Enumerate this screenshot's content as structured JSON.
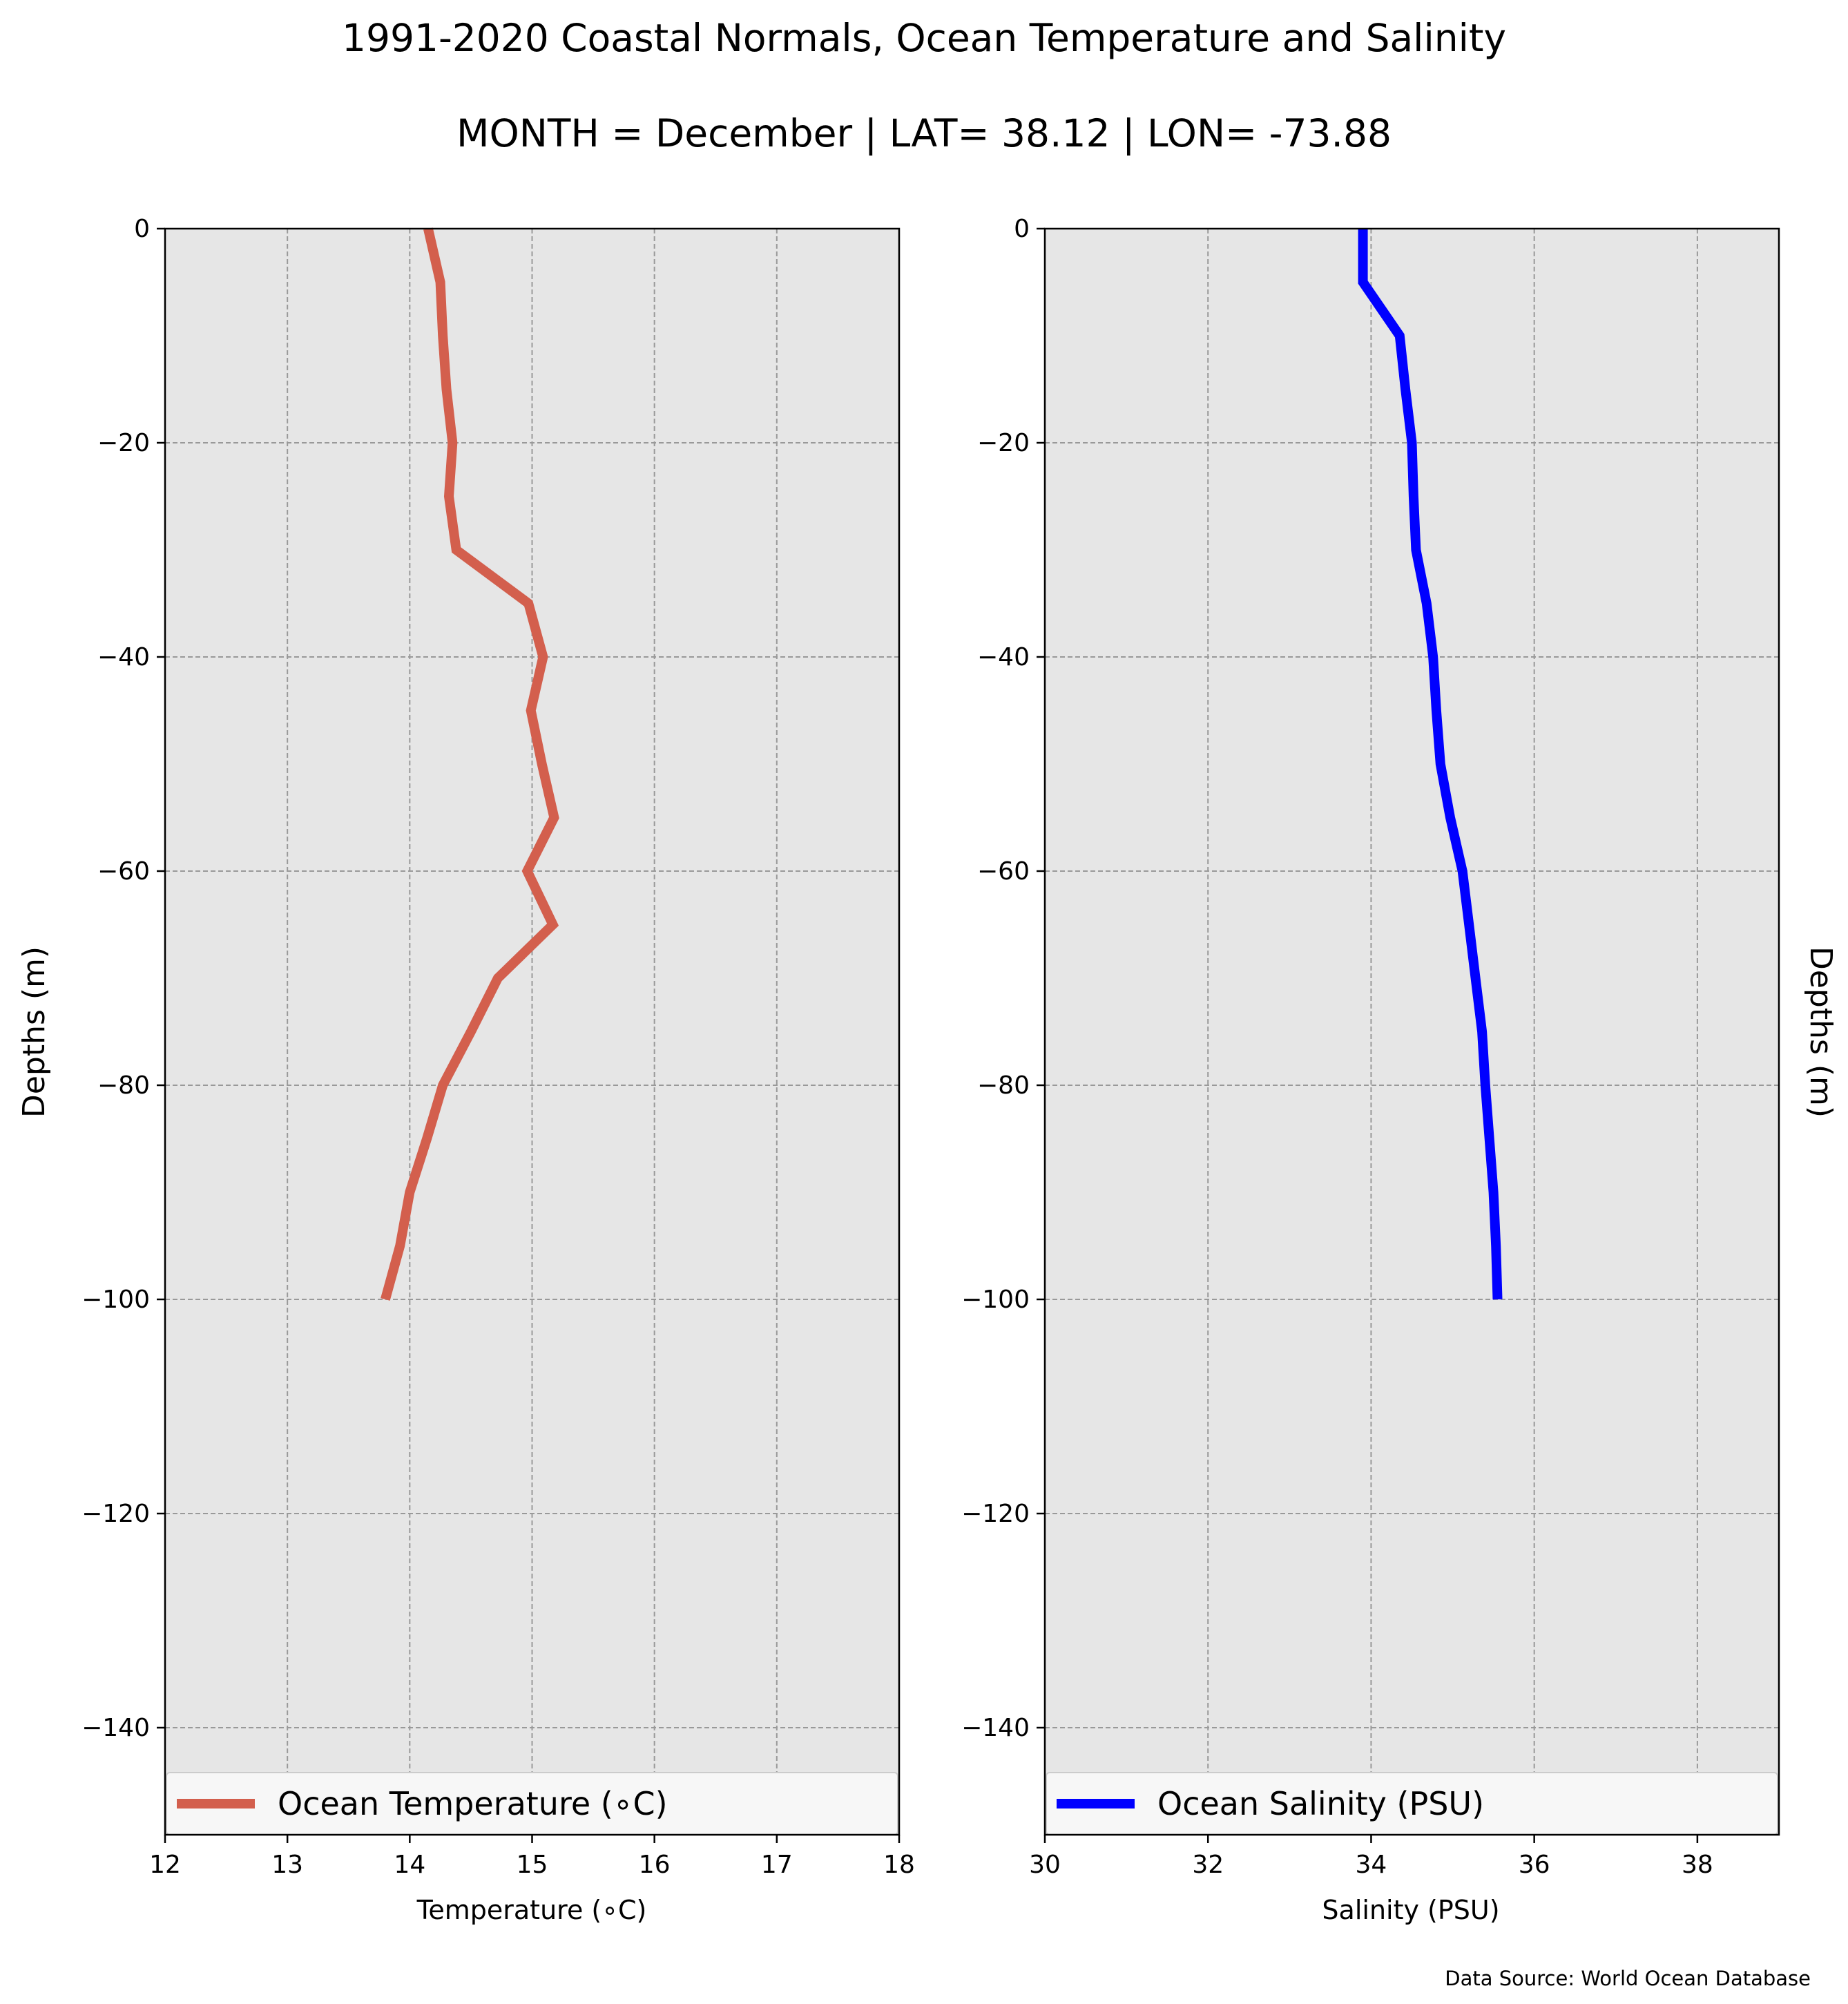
{
  "title_line1": "1991-2020 Coastal Normals, Ocean Temperature and Salinity",
  "title_line2": "MONTH = December | LAT= 38.12 | LON= -73.88",
  "source": "Data Source: World Ocean Database",
  "colors": {
    "temperature_line": "#d35f4d",
    "salinity_line": "#0000ff",
    "panel_bg": "#e6e6e6",
    "grid": "#999999"
  },
  "chart_data": [
    {
      "type": "line",
      "xlabel": "Temperature ($^\\circ$C)",
      "xlabel_display": "Temperature (∘C)",
      "ylabel": "Depths (m)",
      "xlim": [
        12,
        18
      ],
      "ylim": [
        -150,
        0
      ],
      "xticks": [
        "12",
        "13",
        "14",
        "15",
        "16",
        "17",
        "18"
      ],
      "yticks": [
        "0",
        "−20",
        "−40",
        "−60",
        "−80",
        "−100",
        "−120",
        "−140"
      ],
      "ytick_values": [
        0,
        -20,
        -40,
        -60,
        -80,
        -100,
        -120,
        -140
      ],
      "xtick_values": [
        12,
        13,
        14,
        15,
        16,
        17,
        18
      ],
      "grid": true,
      "legend_position": "bottom",
      "series": [
        {
          "name": "Ocean Temperature (∘C)",
          "x": [
            14.15,
            14.25,
            14.27,
            14.3,
            14.35,
            14.32,
            14.38,
            14.97,
            15.09,
            14.99,
            15.08,
            15.18,
            14.96,
            15.17,
            14.72,
            14.5,
            14.27,
            14.14,
            14.0,
            13.92,
            13.8
          ],
          "y": [
            0,
            -5,
            -10,
            -15,
            -20,
            -25,
            -30,
            -35,
            -40,
            -45,
            -50,
            -55,
            -60,
            -65,
            -70,
            -75,
            -80,
            -85,
            -90,
            -95,
            -100
          ]
        }
      ]
    },
    {
      "type": "line",
      "xlabel": "Salinity (PSU)",
      "ylabel": "Depths (m)",
      "xlim": [
        30,
        39
      ],
      "ylim": [
        -150,
        0
      ],
      "xticks": [
        "30",
        "32",
        "34",
        "36",
        "38"
      ],
      "xtick_values": [
        30,
        32,
        34,
        36,
        38
      ],
      "xgrid_values": [
        30,
        32,
        34,
        36,
        38
      ],
      "yticks": [
        "0",
        "−20",
        "−40",
        "−60",
        "−80",
        "−100",
        "−120",
        "−140"
      ],
      "ytick_values": [
        0,
        -20,
        -40,
        -60,
        -80,
        -100,
        -120,
        -140
      ],
      "grid": true,
      "legend_position": "bottom",
      "series": [
        {
          "name": "Ocean Salinity (PSU)",
          "x": [
            33.9,
            33.9,
            34.35,
            34.42,
            34.5,
            34.52,
            34.55,
            34.68,
            34.76,
            34.8,
            34.85,
            34.97,
            35.12,
            35.2,
            35.28,
            35.36,
            35.4,
            35.45,
            35.5,
            35.53,
            35.55
          ],
          "y": [
            0,
            -5,
            -10,
            -15,
            -20,
            -25,
            -30,
            -35,
            -40,
            -45,
            -50,
            -55,
            -60,
            -65,
            -70,
            -75,
            -80,
            -85,
            -90,
            -95,
            -100
          ]
        }
      ]
    }
  ]
}
